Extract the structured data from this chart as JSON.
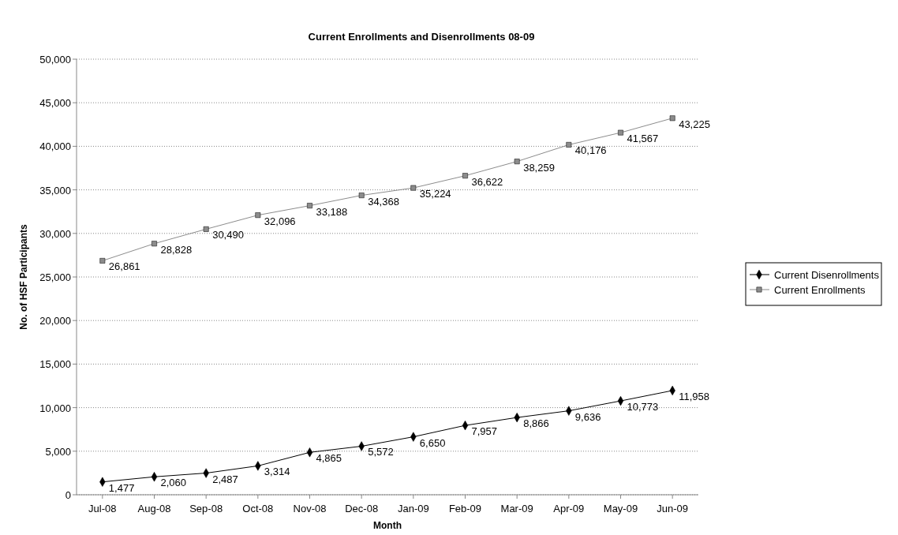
{
  "chart_data": {
    "type": "line",
    "title": "Current Enrollments and Disenrollments 08-09",
    "xlabel": "Month",
    "ylabel": "No. of HSF Participants",
    "categories": [
      "Jul-08",
      "Aug-08",
      "Sep-08",
      "Oct-08",
      "Nov-08",
      "Dec-08",
      "Jan-09",
      "Feb-09",
      "Mar-09",
      "Apr-09",
      "May-09",
      "Jun-09"
    ],
    "series": [
      {
        "name": "Current Disenrollments",
        "color": "#000000",
        "marker": "diamond",
        "values": [
          1477,
          2060,
          2487,
          3314,
          4865,
          5572,
          6650,
          7957,
          8866,
          9636,
          10773,
          11958
        ],
        "value_labels": [
          "1,477",
          "2,060",
          "2,487",
          "3,314",
          "4,865",
          "5,572",
          "6,650",
          "7,957",
          "8,866",
          "9,636",
          "10,773",
          "11,958"
        ]
      },
      {
        "name": "Current Enrollments",
        "color": "#8c8c8c",
        "marker": "square",
        "values": [
          26861,
          28828,
          30490,
          32096,
          33188,
          34368,
          35224,
          36622,
          38259,
          40176,
          41567,
          43225
        ],
        "value_labels": [
          "26,861",
          "28,828",
          "30,490",
          "32,096",
          "33,188",
          "34,368",
          "35,224",
          "36,622",
          "38,259",
          "40,176",
          "41,567",
          "43,225"
        ]
      }
    ],
    "ylim": [
      0,
      50000
    ],
    "yticks": [
      {
        "value": 0,
        "label": "0"
      },
      {
        "value": 5000,
        "label": "5,000"
      },
      {
        "value": 10000,
        "label": "10,000"
      },
      {
        "value": 15000,
        "label": "15,000"
      },
      {
        "value": 20000,
        "label": "20,000"
      },
      {
        "value": 25000,
        "label": "25,000"
      },
      {
        "value": 30000,
        "label": "30,000"
      },
      {
        "value": 35000,
        "label": "35,000"
      },
      {
        "value": 40000,
        "label": "40,000"
      },
      {
        "value": 45000,
        "label": "45,000"
      },
      {
        "value": 50000,
        "label": "50,000"
      }
    ],
    "grid": "y",
    "legend": "right",
    "line_style": "solid"
  }
}
